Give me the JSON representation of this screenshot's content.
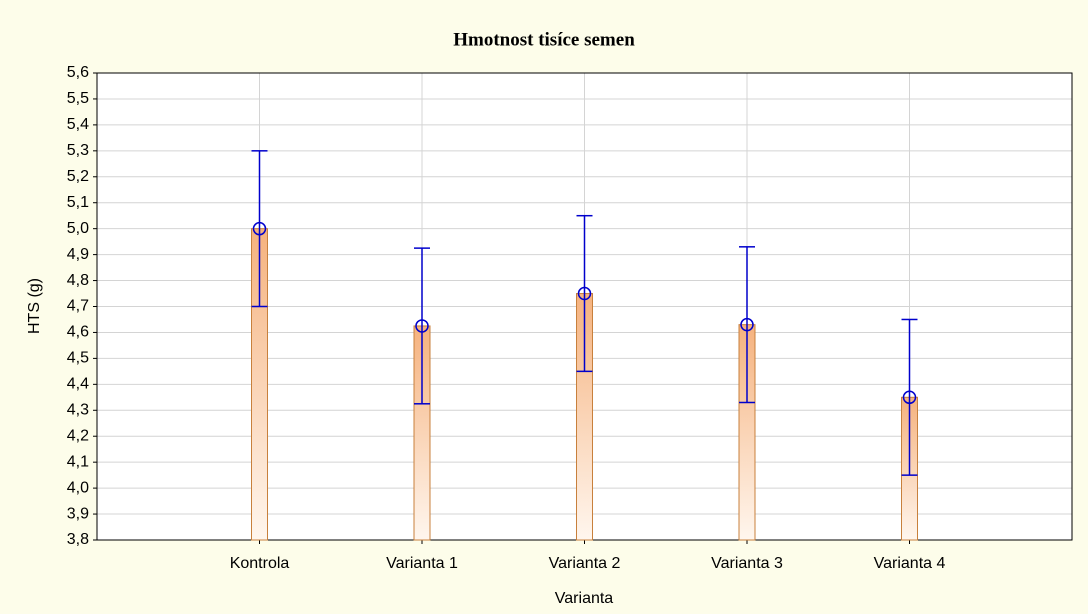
{
  "chart_data": {
    "type": "bar",
    "title": "Hmotnost tisíce semen",
    "x_label": "Varianta",
    "y_label": "HTS (g)",
    "categories": [
      "Kontrola",
      "Varianta 1",
      "Varianta 2",
      "Varianta 3",
      "Varianta 4"
    ],
    "series": [
      {
        "values": [
          5.0,
          4.625,
          4.75,
          4.63,
          4.35
        ],
        "errors": [
          0.3,
          0.3,
          0.3,
          0.3,
          0.3
        ],
        "color": "#f5b27e",
        "error_color": "#0000cc"
      }
    ],
    "ylim": [
      3.8,
      5.6
    ],
    "yticks": [
      {
        "value": 3.8,
        "label": "3,8"
      },
      {
        "value": 3.9,
        "label": "3,9"
      },
      {
        "value": 4.0,
        "label": "4,0"
      },
      {
        "value": 4.1,
        "label": "4,1"
      },
      {
        "value": 4.2,
        "label": "4,2"
      },
      {
        "value": 4.3,
        "label": "4,3"
      },
      {
        "value": 4.4,
        "label": "4,4"
      },
      {
        "value": 4.5,
        "label": "4,5"
      },
      {
        "value": 4.6,
        "label": "4,6"
      },
      {
        "value": 4.7,
        "label": "4,7"
      },
      {
        "value": 4.8,
        "label": "4,8"
      },
      {
        "value": 4.9,
        "label": "4,9"
      },
      {
        "value": 5.0,
        "label": "5,0"
      },
      {
        "value": 5.1,
        "label": "5,1"
      },
      {
        "value": 5.2,
        "label": "5,2"
      },
      {
        "value": 5.3,
        "label": "5,3"
      },
      {
        "value": 5.4,
        "label": "5,4"
      },
      {
        "value": 5.5,
        "label": "5,5"
      },
      {
        "value": 5.6,
        "label": "5,6"
      }
    ],
    "grid": true
  }
}
